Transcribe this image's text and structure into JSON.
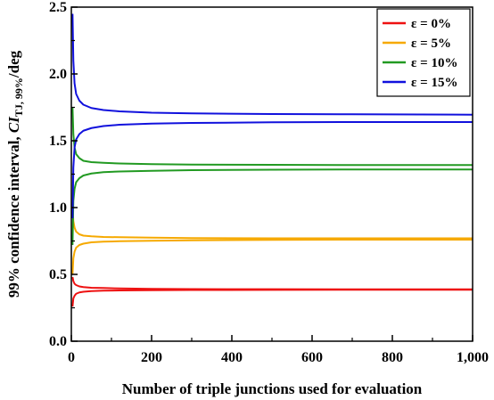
{
  "chart_data": {
    "type": "line",
    "xlabel": "Number of triple junctions used for evaluation",
    "ylabel": {
      "main": "99% confidence interval, ",
      "symbol": "CI",
      "subscript": "TJ, 99%",
      "unit": "/deg"
    },
    "xlim": [
      0,
      1000
    ],
    "ylim": [
      0,
      2.5
    ],
    "x_ticks": [
      0,
      200,
      400,
      600,
      800,
      1000
    ],
    "x_tick_labels": [
      "0",
      "200",
      "400",
      "600",
      "800",
      "1,000"
    ],
    "y_ticks": [
      0,
      0.5,
      1.0,
      1.5,
      2.0,
      2.5
    ],
    "y_tick_labels": [
      "0.0",
      "0.5",
      "1.0",
      "1.5",
      "2.0",
      "2.5"
    ],
    "grid": false,
    "legend_position": "top-right",
    "series": [
      {
        "name": "ε = 0%",
        "color": "#ee1111",
        "upper": {
          "x": [
            3,
            5,
            8,
            12,
            20,
            30,
            50,
            80,
            120,
            200,
            300,
            500,
            700,
            1000
          ],
          "y": [
            0.48,
            0.45,
            0.43,
            0.42,
            0.41,
            0.405,
            0.4,
            0.398,
            0.395,
            0.392,
            0.39,
            0.389,
            0.388,
            0.388
          ]
        },
        "lower": {
          "x": [
            3,
            5,
            8,
            12,
            20,
            30,
            50,
            80,
            120,
            200,
            300,
            500,
            700,
            1000
          ],
          "y": [
            0.26,
            0.32,
            0.34,
            0.355,
            0.365,
            0.37,
            0.375,
            0.378,
            0.38,
            0.382,
            0.383,
            0.384,
            0.385,
            0.385
          ]
        }
      },
      {
        "name": "ε = 5%",
        "color": "#f6a900",
        "upper": {
          "x": [
            3,
            5,
            8,
            12,
            20,
            30,
            50,
            80,
            120,
            200,
            300,
            500,
            700,
            1000
          ],
          "y": [
            1.0,
            0.9,
            0.85,
            0.82,
            0.8,
            0.79,
            0.785,
            0.78,
            0.778,
            0.775,
            0.772,
            0.77,
            0.77,
            0.77
          ]
        },
        "lower": {
          "x": [
            3,
            5,
            8,
            12,
            20,
            30,
            50,
            80,
            120,
            200,
            300,
            500,
            700,
            1000
          ],
          "y": [
            0.5,
            0.62,
            0.67,
            0.7,
            0.72,
            0.73,
            0.74,
            0.745,
            0.748,
            0.752,
            0.755,
            0.758,
            0.76,
            0.76
          ]
        }
      },
      {
        "name": "ε = 10%",
        "color": "#229a22",
        "upper": {
          "x": [
            3,
            5,
            8,
            12,
            20,
            30,
            50,
            80,
            120,
            200,
            300,
            500,
            700,
            1000
          ],
          "y": [
            1.75,
            1.55,
            1.45,
            1.4,
            1.37,
            1.35,
            1.34,
            1.335,
            1.33,
            1.325,
            1.322,
            1.32,
            1.318,
            1.318
          ]
        },
        "lower": {
          "x": [
            3,
            5,
            8,
            12,
            20,
            30,
            50,
            80,
            120,
            200,
            300,
            500,
            700,
            1000
          ],
          "y": [
            0.72,
            1.05,
            1.14,
            1.19,
            1.22,
            1.24,
            1.255,
            1.265,
            1.27,
            1.275,
            1.28,
            1.283,
            1.285,
            1.285
          ]
        }
      },
      {
        "name": "ε = 15%",
        "color": "#1111dd",
        "upper": {
          "x": [
            3,
            5,
            8,
            12,
            20,
            30,
            50,
            80,
            120,
            200,
            300,
            500,
            700,
            1000
          ],
          "y": [
            2.45,
            2.1,
            1.93,
            1.85,
            1.8,
            1.77,
            1.745,
            1.73,
            1.72,
            1.71,
            1.705,
            1.7,
            1.698,
            1.695
          ]
        },
        "lower": {
          "x": [
            3,
            5,
            8,
            12,
            20,
            30,
            50,
            80,
            120,
            200,
            300,
            500,
            700,
            1000
          ],
          "y": [
            0.92,
            1.3,
            1.45,
            1.51,
            1.55,
            1.575,
            1.595,
            1.61,
            1.62,
            1.628,
            1.633,
            1.638,
            1.64,
            1.64
          ]
        }
      }
    ]
  }
}
